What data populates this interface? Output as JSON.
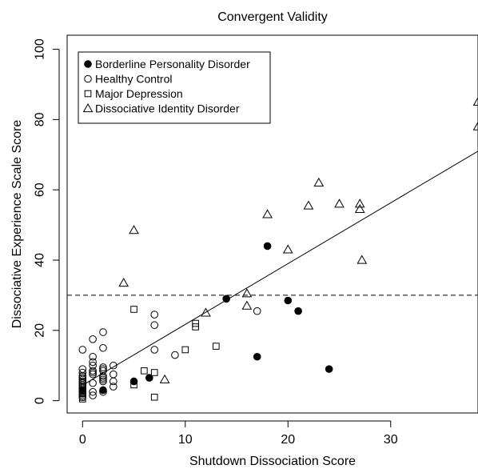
{
  "chart_data": {
    "type": "scatter",
    "title": "Convergent Validity",
    "xlabel": "Shutdown Dissociation Score",
    "ylabel": "Dissociative Experience Scale Score",
    "xlim": [
      -1.5,
      38.5
    ],
    "ylim": [
      -3.5,
      104
    ],
    "xticks": [
      0,
      10,
      20,
      30
    ],
    "yticks": [
      0,
      20,
      40,
      60,
      80,
      100
    ],
    "grid": false,
    "legend_position": "top-left",
    "series": [
      {
        "name": "Borderline Personality Disorder",
        "marker": "filled-circle",
        "points": [
          [
            0,
            3
          ],
          [
            2,
            3
          ],
          [
            5,
            5.5
          ],
          [
            6.5,
            6.5
          ],
          [
            14,
            29
          ],
          [
            18,
            44
          ],
          [
            17,
            12.5
          ],
          [
            20,
            28.5
          ],
          [
            21,
            25.5
          ],
          [
            24,
            9
          ]
        ]
      },
      {
        "name": "Healthy Control",
        "marker": "open-circle",
        "points": [
          [
            0,
            1
          ],
          [
            0,
            1.5
          ],
          [
            0,
            2
          ],
          [
            0,
            2.5
          ],
          [
            0,
            3
          ],
          [
            0,
            3.5
          ],
          [
            0,
            4
          ],
          [
            0,
            4.5
          ],
          [
            0,
            5
          ],
          [
            0,
            5.5
          ],
          [
            0,
            6
          ],
          [
            0,
            6.5
          ],
          [
            0,
            7
          ],
          [
            0,
            8
          ],
          [
            0,
            9
          ],
          [
            0,
            14.5
          ],
          [
            1,
            1.5
          ],
          [
            1,
            2.5
          ],
          [
            1,
            5
          ],
          [
            1,
            7.5
          ],
          [
            1,
            8
          ],
          [
            1,
            8.5
          ],
          [
            1,
            10
          ],
          [
            1,
            11
          ],
          [
            1,
            12.5
          ],
          [
            1,
            17.5
          ],
          [
            2,
            2.5
          ],
          [
            2,
            5.5
          ],
          [
            2,
            6
          ],
          [
            2,
            6.5
          ],
          [
            2,
            7
          ],
          [
            2,
            8.5
          ],
          [
            2,
            9
          ],
          [
            2,
            9.5
          ],
          [
            2,
            15
          ],
          [
            2,
            19.5
          ],
          [
            3,
            4
          ],
          [
            3,
            5.5
          ],
          [
            3,
            7.5
          ],
          [
            3,
            10
          ],
          [
            7,
            14.5
          ],
          [
            7,
            21.5
          ],
          [
            7,
            24.5
          ],
          [
            9,
            13
          ],
          [
            17,
            25.5
          ]
        ]
      },
      {
        "name": "Major Depression",
        "marker": "open-square",
        "points": [
          [
            0,
            0.5
          ],
          [
            0,
            1
          ],
          [
            0,
            2
          ],
          [
            0,
            4
          ],
          [
            0,
            7
          ],
          [
            5,
            4.5
          ],
          [
            5,
            26
          ],
          [
            6,
            8.5
          ],
          [
            7,
            1
          ],
          [
            7,
            8
          ],
          [
            10,
            14.5
          ],
          [
            11,
            21
          ],
          [
            11,
            22
          ],
          [
            13,
            15.5
          ]
        ]
      },
      {
        "name": "Dissociative Identity Disorder",
        "marker": "open-triangle",
        "points": [
          [
            4,
            33.5
          ],
          [
            5,
            48.5
          ],
          [
            8,
            6
          ],
          [
            12,
            25
          ],
          [
            16,
            27
          ],
          [
            16,
            30.5
          ],
          [
            18,
            53
          ],
          [
            20,
            43
          ],
          [
            22,
            55.5
          ],
          [
            23,
            62
          ],
          [
            25,
            56
          ],
          [
            27,
            54.5
          ],
          [
            27,
            56
          ],
          [
            27.2,
            40
          ],
          [
            38.5,
            85
          ],
          [
            38.5,
            78
          ]
        ]
      }
    ],
    "reference_lines": [
      {
        "kind": "regression",
        "style": "solid",
        "from": [
          0,
          4.4
        ],
        "to": [
          38.5,
          71
        ]
      },
      {
        "kind": "horizontal",
        "style": "dashed",
        "y": 30
      }
    ]
  }
}
